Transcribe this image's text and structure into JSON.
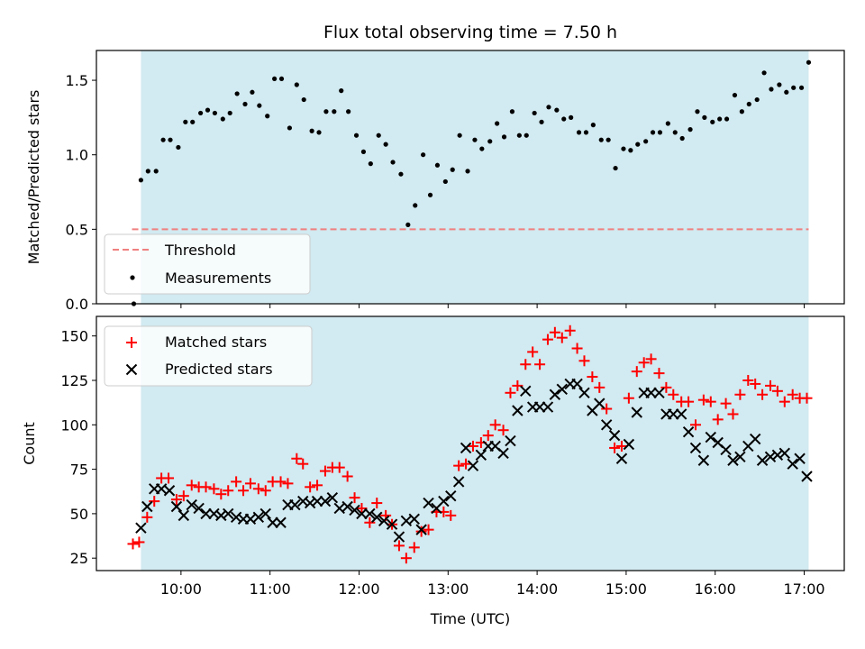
{
  "chart_data": [
    {
      "type": "scatter",
      "panel": "top",
      "title": "Flux total observing time = 7.50 h",
      "xlabel": "",
      "ylabel": "Matched/Predicted stars",
      "ylim": [
        0,
        1.7
      ],
      "yticks": [
        "0.0",
        "0.5",
        "1.0",
        "1.5"
      ],
      "ytick_values": [
        0,
        0.5,
        1.0,
        1.5
      ],
      "xlim_hours": [
        9.05,
        17.45
      ],
      "shaded_interval_hours": [
        9.55,
        17.05
      ],
      "shade_color": "#add8e6",
      "threshold": {
        "name": "Threshold",
        "value": 0.5,
        "x_hours": [
          9.45,
          17.05
        ],
        "color": "#f08080",
        "style": "dashed"
      },
      "legend": {
        "position": "lower-left",
        "entries": [
          "Threshold",
          "Measurements"
        ]
      },
      "series": [
        {
          "name": "Measurements",
          "marker": "dot",
          "color": "#000000",
          "x_hours": [
            9.47,
            9.55,
            9.63,
            9.72,
            9.8,
            9.88,
            9.97,
            10.05,
            10.13,
            10.22,
            10.3,
            10.38,
            10.47,
            10.55,
            10.63,
            10.72,
            10.8,
            10.88,
            10.97,
            11.05,
            11.13,
            11.22,
            11.3,
            11.38,
            11.47,
            11.55,
            11.63,
            11.72,
            11.8,
            11.88,
            11.97,
            12.05,
            12.13,
            12.22,
            12.3,
            12.38,
            12.47,
            12.55,
            12.63,
            12.72,
            12.8,
            12.88,
            12.97,
            13.05,
            13.13,
            13.22,
            13.3,
            13.38,
            13.47,
            13.55,
            13.63,
            13.72,
            13.8,
            13.88,
            13.97,
            14.05,
            14.13,
            14.22,
            14.3,
            14.38,
            14.47,
            14.55,
            14.63,
            14.72,
            14.8,
            14.88,
            14.97,
            15.05,
            15.13,
            15.22,
            15.3,
            15.38,
            15.47,
            15.55,
            15.63,
            15.72,
            15.8,
            15.88,
            15.97,
            16.05,
            16.13,
            16.22,
            16.3,
            16.38,
            16.47,
            16.55,
            16.63,
            16.72,
            16.8,
            16.88,
            16.97,
            17.05
          ],
          "y": [
            0.0,
            0.83,
            0.89,
            0.89,
            1.1,
            1.1,
            1.05,
            1.22,
            1.22,
            1.28,
            1.3,
            1.28,
            1.24,
            1.28,
            1.41,
            1.34,
            1.42,
            1.33,
            1.26,
            1.51,
            1.51,
            1.18,
            1.47,
            1.37,
            1.16,
            1.15,
            1.29,
            1.29,
            1.43,
            1.29,
            1.13,
            1.02,
            0.94,
            1.13,
            1.07,
            0.95,
            0.87,
            0.53,
            0.66,
            1.0,
            0.73,
            0.93,
            0.82,
            0.9,
            1.13,
            0.89,
            1.1,
            1.04,
            1.09,
            1.21,
            1.12,
            1.29,
            1.13,
            1.13,
            1.28,
            1.22,
            1.32,
            1.3,
            1.24,
            1.25,
            1.15,
            1.15,
            1.2,
            1.1,
            1.1,
            0.91,
            1.04,
            1.03,
            1.07,
            1.09,
            1.15,
            1.15,
            1.21,
            1.15,
            1.11,
            1.17,
            1.29,
            1.25,
            1.22,
            1.24,
            1.24,
            1.4,
            1.29,
            1.34,
            1.37,
            1.55,
            1.44,
            1.47,
            1.42,
            1.45,
            1.45,
            1.62
          ]
        }
      ]
    },
    {
      "type": "scatter",
      "panel": "bottom",
      "xlabel": "Time (UTC)",
      "ylabel": "Count",
      "ylim": [
        18,
        161
      ],
      "yticks": [
        "25",
        "50",
        "75",
        "100",
        "125",
        "150"
      ],
      "ytick_values": [
        25,
        50,
        75,
        100,
        125,
        150
      ],
      "xticks": [
        "10:00",
        "11:00",
        "12:00",
        "13:00",
        "14:00",
        "15:00",
        "16:00",
        "17:00"
      ],
      "xtick_hours": [
        10,
        11,
        12,
        13,
        14,
        15,
        16,
        17
      ],
      "xlim_hours": [
        9.05,
        17.45
      ],
      "shaded_interval_hours": [
        9.55,
        17.05
      ],
      "shade_color": "#add8e6",
      "legend": {
        "position": "upper-left",
        "entries": [
          "Matched stars",
          "Predicted stars"
        ]
      },
      "series": [
        {
          "name": "Matched stars",
          "marker": "plus",
          "color": "#ff0000",
          "x_hours": [
            9.46,
            9.53,
            9.62,
            9.7,
            9.78,
            9.86,
            9.95,
            10.03,
            10.12,
            10.2,
            10.28,
            10.37,
            10.45,
            10.53,
            10.62,
            10.7,
            10.78,
            10.87,
            10.95,
            11.03,
            11.12,
            11.2,
            11.3,
            11.37,
            11.45,
            11.53,
            11.62,
            11.7,
            11.78,
            11.87,
            11.95,
            12.03,
            12.12,
            12.2,
            12.3,
            12.37,
            12.45,
            12.53,
            12.62,
            12.7,
            12.78,
            12.87,
            12.95,
            13.03,
            13.12,
            13.2,
            13.28,
            13.37,
            13.45,
            13.53,
            13.62,
            13.7,
            13.78,
            13.87,
            13.95,
            14.03,
            14.12,
            14.2,
            14.28,
            14.37,
            14.45,
            14.53,
            14.62,
            14.7,
            14.78,
            14.87,
            14.95,
            15.03,
            15.12,
            15.2,
            15.28,
            15.37,
            15.45,
            15.53,
            15.62,
            15.7,
            15.78,
            15.87,
            15.95,
            16.03,
            16.12,
            16.2,
            16.28,
            16.37,
            16.45,
            16.53,
            16.62,
            16.7,
            16.78,
            16.87,
            16.95,
            17.03
          ],
          "y": [
            33,
            34,
            48,
            57,
            70,
            70,
            58,
            60,
            66,
            65,
            65,
            64,
            61,
            63,
            68,
            63,
            67,
            64,
            63,
            68,
            68,
            67,
            81,
            78,
            65,
            66,
            74,
            76,
            76,
            71,
            59,
            53,
            45,
            56,
            49,
            44,
            32,
            25,
            31,
            40,
            41,
            51,
            51,
            49,
            77,
            78,
            88,
            90,
            94,
            100,
            97,
            118,
            122,
            134,
            141,
            134,
            148,
            152,
            149,
            153,
            143,
            136,
            127,
            121,
            109,
            87,
            88,
            115,
            130,
            135,
            137,
            129,
            121,
            117,
            113,
            113,
            100,
            114,
            113,
            103,
            112,
            106,
            117,
            125,
            123,
            117,
            122,
            119,
            113,
            117,
            115,
            115
          ]
        },
        {
          "name": "Predicted stars",
          "marker": "x",
          "color": "#000000",
          "x_hours": [
            9.55,
            9.62,
            9.7,
            9.78,
            9.87,
            9.95,
            10.03,
            10.12,
            10.2,
            10.28,
            10.37,
            10.45,
            10.53,
            10.62,
            10.7,
            10.78,
            10.87,
            10.95,
            11.03,
            11.12,
            11.2,
            11.28,
            11.37,
            11.45,
            11.53,
            11.62,
            11.7,
            11.78,
            11.87,
            11.95,
            12.03,
            12.12,
            12.2,
            12.28,
            12.37,
            12.45,
            12.53,
            12.62,
            12.7,
            12.78,
            12.87,
            12.95,
            13.03,
            13.12,
            13.2,
            13.28,
            13.37,
            13.45,
            13.53,
            13.62,
            13.7,
            13.78,
            13.87,
            13.95,
            14.03,
            14.12,
            14.2,
            14.28,
            14.37,
            14.45,
            14.53,
            14.62,
            14.7,
            14.78,
            14.87,
            14.95,
            15.03,
            15.12,
            15.2,
            15.28,
            15.37,
            15.45,
            15.53,
            15.62,
            15.7,
            15.78,
            15.87,
            15.95,
            16.03,
            16.12,
            16.2,
            16.28,
            16.37,
            16.45,
            16.53,
            16.62,
            16.7,
            16.78,
            16.87,
            16.95,
            17.03
          ],
          "y": [
            42,
            54,
            64,
            64,
            63,
            54,
            49,
            55,
            53,
            50,
            50,
            49,
            50,
            48,
            47,
            47,
            48,
            50,
            45,
            45,
            55,
            55,
            57,
            56,
            57,
            57,
            59,
            53,
            54,
            52,
            50,
            50,
            48,
            46,
            44,
            37,
            46,
            47,
            41,
            56,
            53,
            57,
            60,
            68,
            87,
            77,
            83,
            88,
            88,
            84,
            91,
            108,
            119,
            110,
            110,
            110,
            117,
            120,
            123,
            123,
            118,
            108,
            112,
            100,
            94,
            81,
            89,
            107,
            118,
            118,
            118,
            106,
            106,
            106,
            96,
            87,
            80,
            93,
            90,
            86,
            80,
            82,
            88,
            92,
            80,
            82,
            83,
            84,
            78,
            81,
            71
          ]
        }
      ]
    }
  ]
}
